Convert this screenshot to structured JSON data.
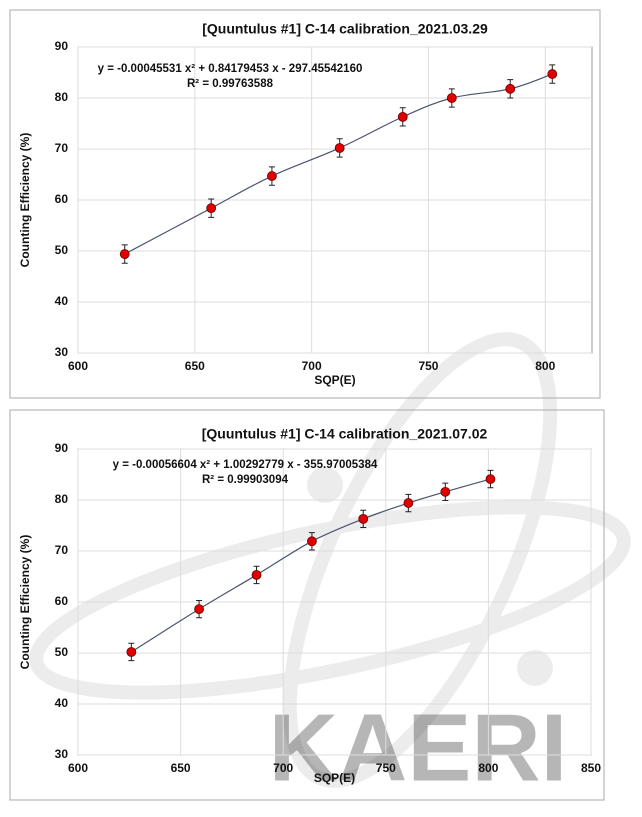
{
  "chart_data": [
    {
      "type": "scatter",
      "title": "[Quuntulus #1] C-14 calibration_2021.03.29",
      "equation": "y = -0.00045531 x² + 0.84179453 x - 297.45542160",
      "r_squared": "R² = 0.99763588",
      "x_label": "SQP(E)",
      "y_label": "Counting Efficiency (%)",
      "x": [
        620,
        657,
        683,
        712,
        739,
        760,
        785,
        803
      ],
      "values": [
        49.4,
        58.4,
        64.7,
        70.2,
        76.3,
        80.0,
        81.8,
        84.7
      ],
      "errors": [
        1.8,
        1.8,
        1.8,
        1.8,
        1.8,
        1.8,
        1.8,
        1.8
      ],
      "color": "#e00000",
      "line_color": "#4a5470",
      "xlim": [
        600,
        820
      ],
      "xticks": [
        600,
        650,
        700,
        750,
        800
      ],
      "ylim": [
        30,
        90
      ],
      "yticks": [
        30,
        40,
        50,
        60,
        70,
        80,
        90
      ],
      "grid": true
    },
    {
      "type": "scatter",
      "title": "[Quuntulus #1] C-14 calibration_2021.07.02",
      "equation": "y = -0.00056604  x² + 1.00292779  x - 355.97005384",
      "r_squared": "R² = 0.99903094",
      "x_label": "SQP(E)",
      "y_label": "Counting Efficiency (%)",
      "x": [
        626,
        659,
        687,
        714,
        739,
        761,
        779,
        801
      ],
      "values": [
        50.2,
        58.6,
        65.3,
        71.9,
        76.3,
        79.4,
        81.6,
        84.1
      ],
      "errors": [
        1.7,
        1.7,
        1.7,
        1.7,
        1.7,
        1.7,
        1.7,
        1.7
      ],
      "color": "#e00000",
      "line_color": "#4a5470",
      "xlim": [
        600,
        850
      ],
      "xticks": [
        600,
        650,
        700,
        750,
        800,
        850
      ],
      "ylim": [
        30,
        90
      ],
      "yticks": [
        30,
        40,
        50,
        60,
        70,
        80,
        90
      ],
      "grid": true
    }
  ],
  "watermark": "KAERI"
}
